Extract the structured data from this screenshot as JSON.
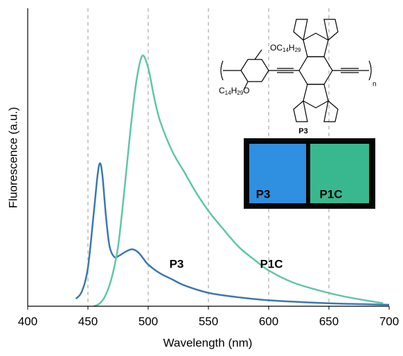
{
  "chart_data": {
    "type": "line",
    "x_label": "Wavelength (nm)",
    "y_label": "Fluorescence (a.u.)",
    "xlim": [
      400,
      700
    ],
    "xticks": [
      400,
      450,
      500,
      550,
      600,
      650,
      700
    ],
    "ylim": [
      0,
      1
    ],
    "grid": "x",
    "series": [
      {
        "name": "P3",
        "color": "#3b78b2",
        "x": [
          440,
          445,
          450,
          455,
          458,
          460,
          462,
          465,
          468,
          472,
          476,
          480,
          485,
          488,
          492,
          496,
          500,
          510,
          520,
          530,
          550,
          575,
          600,
          650,
          700
        ],
        "values": [
          0.025,
          0.05,
          0.13,
          0.32,
          0.44,
          0.48,
          0.44,
          0.3,
          0.2,
          0.165,
          0.17,
          0.18,
          0.19,
          0.19,
          0.18,
          0.16,
          0.14,
          0.11,
          0.09,
          0.07,
          0.045,
          0.03,
          0.02,
          0.01,
          0.005
        ]
      },
      {
        "name": "P1C",
        "color": "#5fc6a9",
        "x": [
          455,
          460,
          465,
          470,
          475,
          480,
          485,
          490,
          495,
          500,
          505,
          510,
          520,
          530,
          540,
          550,
          560,
          575,
          590,
          600,
          620,
          640,
          660,
          680,
          695
        ],
        "values": [
          0.0,
          0.01,
          0.04,
          0.1,
          0.2,
          0.38,
          0.58,
          0.75,
          0.84,
          0.8,
          0.7,
          0.62,
          0.52,
          0.45,
          0.38,
          0.32,
          0.27,
          0.2,
          0.15,
          0.12,
          0.08,
          0.055,
          0.035,
          0.02,
          0.01
        ]
      }
    ],
    "annotations": [
      "P3",
      "P1C"
    ],
    "inset": {
      "substituent_top": [
        "OC",
        "14",
        "H",
        "29"
      ],
      "substituent_bottom": [
        "C",
        "14",
        "H",
        "29",
        "O"
      ],
      "repeat": "n",
      "structure_label": "P3",
      "photo_labels": [
        "P3",
        "P1C"
      ]
    }
  }
}
